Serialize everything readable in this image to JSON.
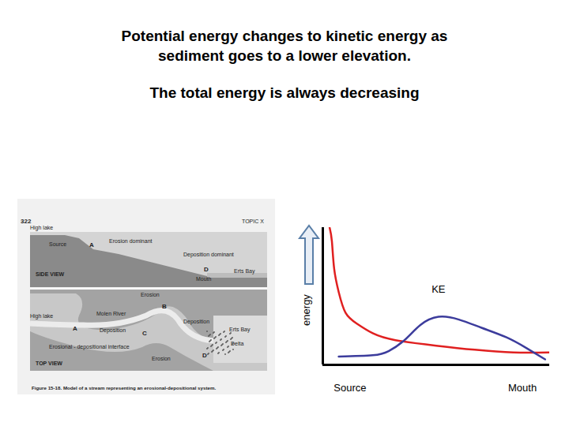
{
  "slide": {
    "title_lines": [
      "Potential energy changes to kinetic energy as",
      "sediment goes to a lower elevation."
    ],
    "subtitle": "The total energy is always decreasing",
    "figure": {
      "labels": [
        "322",
        "TOPIC X",
        "High lake",
        "Source",
        "A",
        "Erosion dominant",
        "Deposition dominant",
        "SIDE VIEW",
        "Mouth",
        "D",
        "Erts Bay",
        "Erosion",
        "B",
        "High lake",
        "Molen River",
        "A",
        "Deposition",
        "Deposition",
        "C",
        "Erts Bay",
        "Erosional - depositional interface",
        "Delta",
        "Erosion",
        "D",
        "TOP VIEW"
      ],
      "caption": "Figure 15-18. Model of a stream representing an erosional-depositional system."
    }
  },
  "chart_data": {
    "type": "line",
    "y_label": "energy",
    "x": [
      3,
      4,
      5,
      7,
      10,
      15,
      22,
      32,
      50,
      67,
      84,
      100
    ],
    "series": [
      {
        "color": "#e02020",
        "values": [
          100,
          90,
          70,
          53,
          38,
          30,
          23,
          18,
          14,
          11,
          9,
          9
        ]
      },
      {
        "name": "KE",
        "color": "#3c3c9c",
        "x": [
          7,
          22,
          29,
          36,
          43,
          51,
          60,
          70,
          81,
          90,
          98
        ],
        "values": [
          6,
          7,
          10,
          18,
          29,
          35,
          33,
          27,
          20,
          12,
          4
        ]
      }
    ],
    "xlim": [
      0,
      100
    ],
    "xticks": [
      {
        "value": 12,
        "label": "Source"
      },
      {
        "value": 88,
        "label": "Mouth"
      }
    ],
    "ylim": [
      0,
      100
    ],
    "tick_labels": "x",
    "grid": false
  }
}
